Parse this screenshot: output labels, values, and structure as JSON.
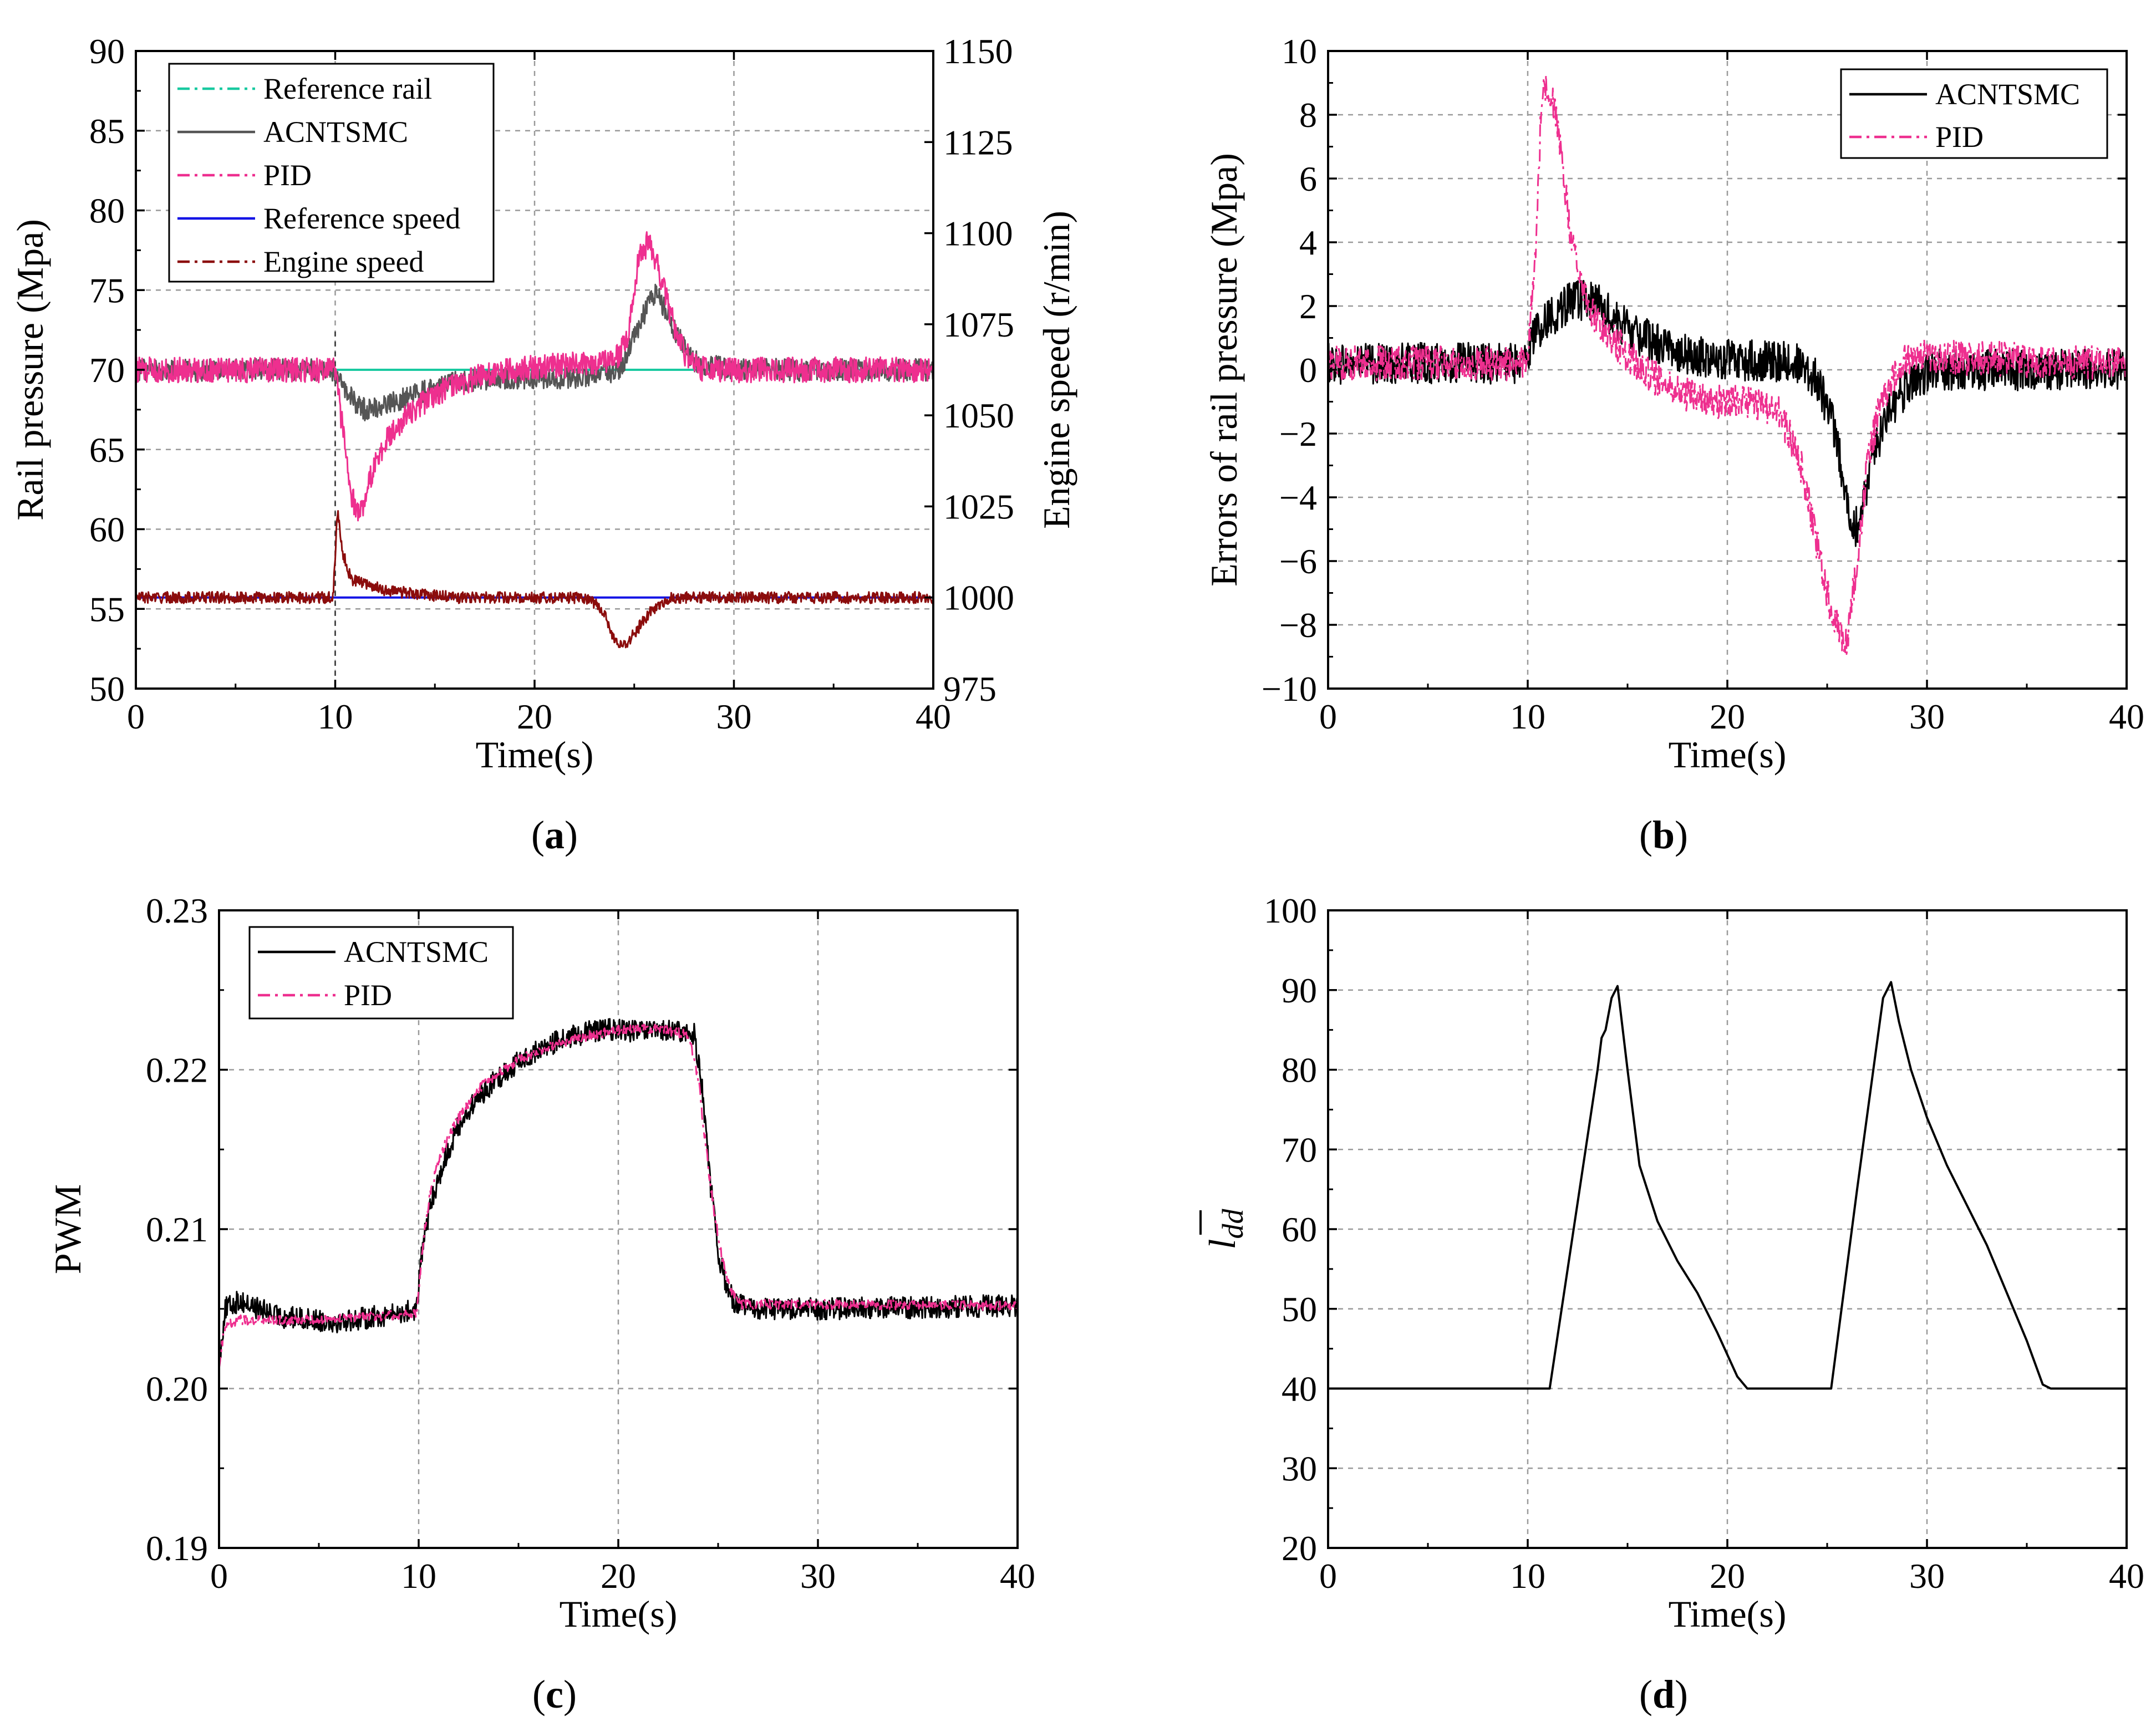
{
  "chart_data": [
    {
      "id": "a",
      "type": "line",
      "caption": "(a)",
      "caption_letter": "a",
      "xlabel": "Time(s)",
      "ylabel": "Rail pressure (Mpa)",
      "y2label": "Engine speed (r/min)",
      "xlim": [
        0,
        40
      ],
      "ylim": [
        50,
        90
      ],
      "y2lim": [
        975,
        1150
      ],
      "xticks": [
        "0",
        "10",
        "20",
        "30",
        "40"
      ],
      "yticks": [
        "50",
        "55",
        "60",
        "65",
        "70",
        "75",
        "80",
        "85",
        "90"
      ],
      "y2ticks": [
        "975",
        "1000",
        "1025",
        "1050",
        "1075",
        "1100",
        "1125",
        "1150"
      ],
      "legend_position": "top-left",
      "series": [
        {
          "name": "Reference rail",
          "color": "#19c9a0",
          "axis": "left",
          "x": [
            0,
            10,
            40
          ],
          "y": [
            70,
            70,
            70
          ]
        },
        {
          "name": "ACNTSMC",
          "color": "#555555",
          "axis": "left",
          "noise": 0.7,
          "x": [
            0,
            9.9,
            10.3,
            11,
            11.5,
            12.5,
            14,
            16,
            18,
            20,
            22,
            24,
            24.5,
            25,
            25.5,
            26,
            26.5,
            27,
            28,
            30,
            40
          ],
          "y": [
            70,
            70,
            69,
            68,
            67.5,
            67.8,
            68.5,
            69.2,
            69.5,
            69.5,
            69.5,
            69.8,
            70.5,
            72,
            73.5,
            74.8,
            74,
            72.5,
            70.5,
            70,
            70
          ]
        },
        {
          "name": "PID",
          "color": "#ee2f8f",
          "axis": "left",
          "noise": 0.8,
          "x": [
            0,
            10,
            10.4,
            10.8,
            11.3,
            11.7,
            12.5,
            13.5,
            15,
            17,
            19,
            21,
            22.5,
            24,
            24.7,
            25.2,
            25.7,
            26.2,
            26.8,
            27.5,
            28.5,
            30,
            40
          ],
          "y": [
            70,
            70,
            66,
            62,
            61,
            63,
            65.5,
            67,
            68.5,
            69.5,
            70,
            70.3,
            70.3,
            70.5,
            72,
            77,
            78,
            76.5,
            73.5,
            71,
            70,
            70,
            70
          ]
        },
        {
          "name": "Reference speed",
          "color": "#1414e6",
          "axis": "right",
          "x": [
            0,
            40
          ],
          "y": [
            1000,
            1000
          ]
        },
        {
          "name": "Engine speed",
          "color": "#8b0c0c",
          "axis": "right",
          "noise": 1.6,
          "x": [
            0,
            9.9,
            10.1,
            10.4,
            10.8,
            11.5,
            12.5,
            14,
            16,
            20,
            22.5,
            23.2,
            23.6,
            24,
            24.5,
            25,
            25.5,
            26,
            26.5,
            27,
            30,
            40
          ],
          "y": [
            1000,
            1000,
            1024,
            1012,
            1005,
            1004,
            1002,
            1001,
            1000,
            1000,
            1000,
            998,
            994,
            988,
            987,
            990,
            994,
            997,
            999,
            1000,
            1000,
            1000
          ]
        }
      ]
    },
    {
      "id": "b",
      "type": "line",
      "caption": "(b)",
      "caption_letter": "b",
      "xlabel": "Time(s)",
      "ylabel": "Errors of rail pressure (Mpa)",
      "xlim": [
        0,
        40
      ],
      "ylim": [
        -10,
        10
      ],
      "xticks": [
        "0",
        "10",
        "20",
        "30",
        "40"
      ],
      "yticks": [
        "−10",
        "−8",
        "−6",
        "−4",
        "−2",
        "0",
        "2",
        "4",
        "6",
        "8",
        "10"
      ],
      "legend_position": "top-right",
      "series": [
        {
          "name": "ACNTSMC",
          "color": "#000000",
          "noise": 0.65,
          "x": [
            0,
            9.8,
            10.4,
            11.2,
            12,
            12.8,
            13.6,
            14.5,
            15.5,
            16.5,
            17.5,
            18.5,
            19.5,
            20.5,
            22,
            23.5,
            24.5,
            25.2,
            25.7,
            26.1,
            26.4,
            26.8,
            27.2,
            27.8,
            28.5,
            29.3,
            30.5,
            32,
            40
          ],
          "y": [
            0.2,
            0.2,
            1.2,
            1.7,
            2.1,
            2.2,
            2,
            1.5,
            1.1,
            0.8,
            0.6,
            0.4,
            0.3,
            0.3,
            0.3,
            0.2,
            -0.3,
            -1.5,
            -3,
            -4.3,
            -5,
            -4.3,
            -3,
            -1.8,
            -0.9,
            -0.4,
            0,
            0,
            0
          ]
        },
        {
          "name": "PID",
          "color": "#ee2f8f",
          "dash": "22,9,5,9",
          "noise": 0.55,
          "x": [
            0,
            10,
            10.4,
            10.7,
            11,
            11.4,
            11.8,
            12.2,
            12.8,
            13.5,
            14.5,
            15.5,
            16.5,
            18,
            19.5,
            21,
            22.5,
            23.5,
            24.2,
            24.8,
            25.2,
            25.6,
            26,
            26.5,
            27,
            27.6,
            28.2,
            29,
            30,
            31,
            40
          ],
          "y": [
            0.2,
            0.2,
            4,
            8.5,
            9,
            8,
            6,
            4,
            2.5,
            1.5,
            0.8,
            0.2,
            -0.3,
            -0.8,
            -1,
            -1,
            -1.3,
            -2.5,
            -4.5,
            -6.5,
            -7.5,
            -8.3,
            -8.5,
            -6,
            -3,
            -1.2,
            -0.3,
            0.3,
            0.5,
            0.4,
            0.2
          ]
        }
      ]
    },
    {
      "id": "c",
      "type": "line",
      "caption": "(c)",
      "caption_letter": "c",
      "xlabel": "Time(s)",
      "ylabel": "PWM",
      "xlim": [
        0,
        40
      ],
      "ylim": [
        0.19,
        0.23
      ],
      "xticks": [
        "0",
        "10",
        "20",
        "30",
        "40"
      ],
      "yticks": [
        "0.19",
        "0.20",
        "0.21",
        "0.22",
        "0.23"
      ],
      "legend_position": "top-left",
      "series": [
        {
          "name": "ACNTSMC",
          "color": "#000000",
          "noise": 0.0007,
          "x": [
            0,
            0.3,
            1,
            3,
            6,
            9,
            9.9,
            10.2,
            10.6,
            11.2,
            12,
            13,
            14,
            15,
            16,
            17,
            18,
            19,
            20,
            21,
            22,
            23,
            23.8,
            24.2,
            24.6,
            25,
            25.4,
            25.8,
            26.5,
            30,
            40
          ],
          "y": [
            0.2015,
            0.205,
            0.2055,
            0.2045,
            0.2042,
            0.2047,
            0.205,
            0.209,
            0.2115,
            0.214,
            0.2165,
            0.2183,
            0.2195,
            0.2205,
            0.2212,
            0.2218,
            0.2222,
            0.2225,
            0.2225,
            0.2224,
            0.2224,
            0.2224,
            0.2222,
            0.219,
            0.213,
            0.2085,
            0.2065,
            0.2055,
            0.205,
            0.205,
            0.2052
          ]
        },
        {
          "name": "PID",
          "color": "#ee2f8f",
          "dash": "22,9,5,9",
          "noise": 0.0003,
          "x": [
            0,
            0.3,
            1,
            5,
            9.9,
            10.2,
            10.6,
            11.2,
            12,
            13,
            14,
            15,
            16,
            18,
            20,
            22,
            23.5,
            24,
            24.4,
            24.8,
            25.2,
            25.6,
            26.2,
            40
          ],
          "y": [
            0.2015,
            0.204,
            0.2043,
            0.2043,
            0.2047,
            0.209,
            0.2125,
            0.215,
            0.217,
            0.2188,
            0.2198,
            0.2206,
            0.2212,
            0.222,
            0.2225,
            0.2226,
            0.2222,
            0.2195,
            0.215,
            0.211,
            0.2082,
            0.2063,
            0.2053,
            0.2052
          ]
        }
      ]
    },
    {
      "id": "d",
      "type": "line",
      "caption": "(d)",
      "caption_letter": "d",
      "xlabel": "Time(s)",
      "ylabel": "l",
      "ylabel_subscript": "dd",
      "xlim": [
        0,
        40
      ],
      "ylim": [
        20,
        100
      ],
      "xticks": [
        "0",
        "10",
        "20",
        "30",
        "40"
      ],
      "yticks": [
        "20",
        "30",
        "40",
        "50",
        "60",
        "70",
        "80",
        "90",
        "100"
      ],
      "legend_position": "none",
      "series": [
        {
          "name": "l_dd",
          "color": "#000000",
          "x": [
            0,
            11.1,
            12.3,
            13.5,
            13.7,
            13.9,
            14.2,
            14.5,
            15,
            15.6,
            16.5,
            17.5,
            18.5,
            19.5,
            20.5,
            21,
            25.2,
            26.5,
            27.8,
            28.2,
            28.6,
            29.2,
            30,
            31,
            32,
            33,
            34,
            35,
            35.8,
            36.2,
            40
          ],
          "y": [
            40,
            40,
            60,
            80,
            84,
            85,
            89,
            90.5,
            80,
            68,
            61,
            56,
            52,
            47,
            41.5,
            40,
            40,
            65,
            89,
            91,
            86,
            80,
            74,
            68,
            63,
            58,
            52,
            46,
            40.5,
            40,
            40
          ]
        }
      ]
    }
  ]
}
